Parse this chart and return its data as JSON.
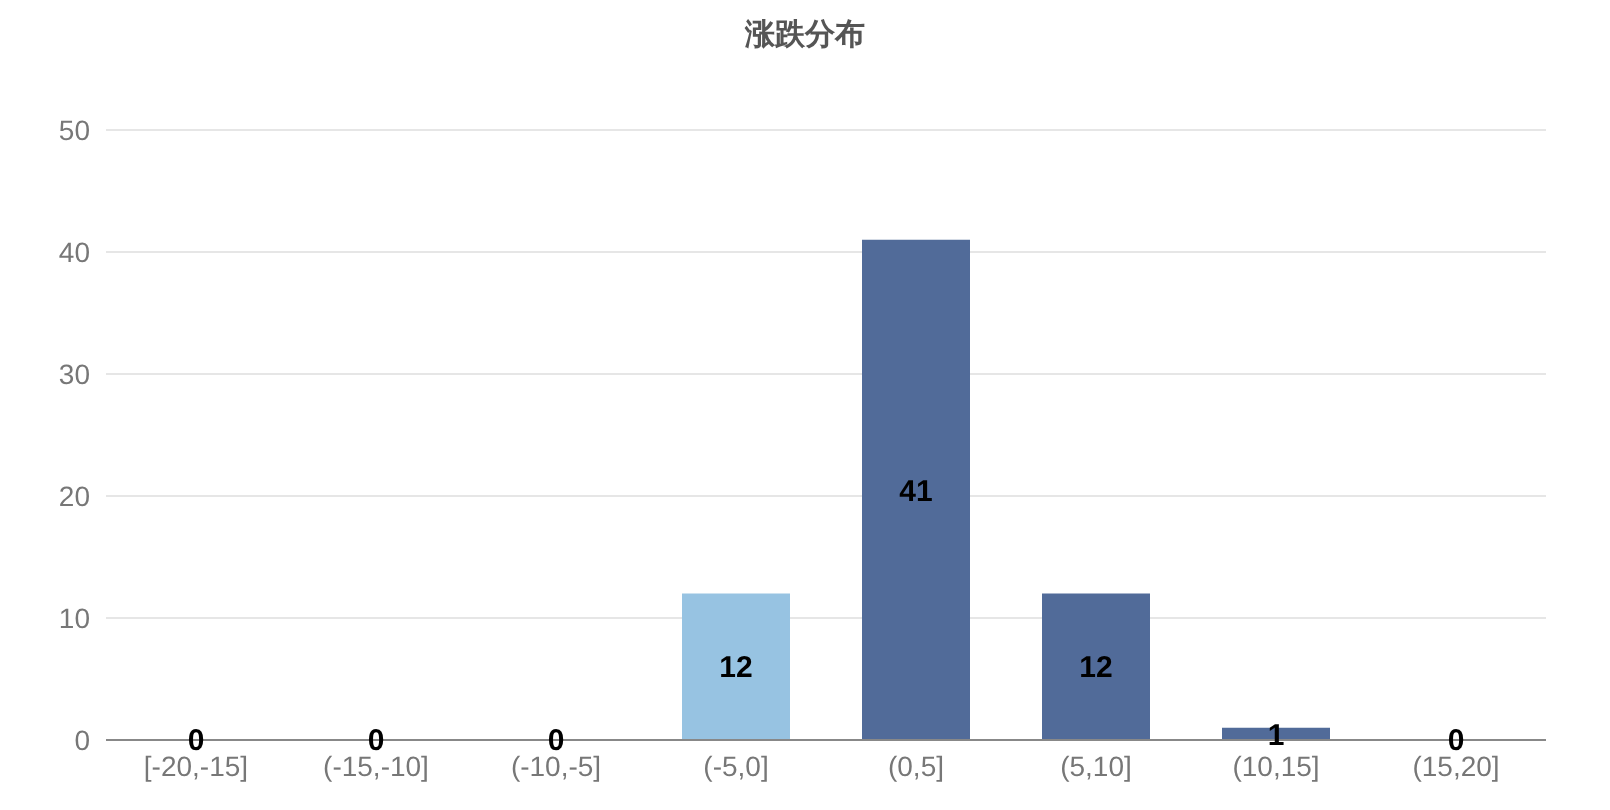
{
  "chart_data": {
    "type": "bar",
    "title": "涨跌分布",
    "categories": [
      "[-20,-15]",
      "(-15,-10]",
      "(-10,-5]",
      "(-5,0]",
      "(0,5]",
      "(5,10]",
      "(10,15]",
      "(15,20]"
    ],
    "values": [
      0,
      0,
      0,
      12,
      41,
      12,
      1,
      0
    ],
    "colors": [
      "#516b99",
      "#516b99",
      "#516b99",
      "#97c3e2",
      "#516b99",
      "#516b99",
      "#516b99",
      "#516b99"
    ],
    "ylim": [
      0,
      50
    ],
    "yticks": [
      0,
      10,
      20,
      30,
      40,
      50
    ],
    "grid": "y",
    "data_labels": true
  }
}
